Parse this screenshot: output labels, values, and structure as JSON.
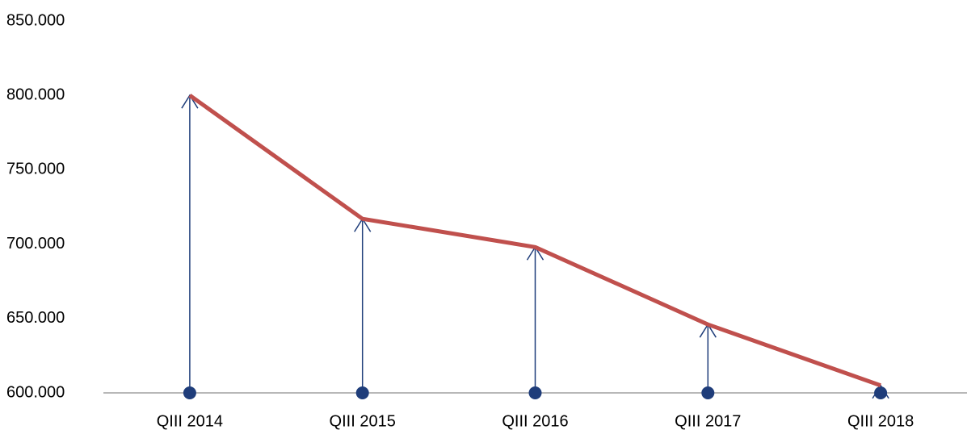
{
  "chart_data": {
    "type": "line",
    "categories": [
      "QIII 2014",
      "QIII 2015",
      "QIII 2016",
      "QIII 2017",
      "QIII 2018"
    ],
    "series": [
      {
        "color": "#c0504d",
        "values": [
          800000,
          717000,
          698000,
          646000,
          605000
        ]
      }
    ],
    "drop_line_color": "#1f3d7a",
    "ylim": [
      600000,
      850000
    ],
    "yticks": [
      {
        "value": 600000,
        "label": "600.000"
      },
      {
        "value": 650000,
        "label": "650.000"
      },
      {
        "value": 700000,
        "label": "700.000"
      },
      {
        "value": 750000,
        "label": "750.000"
      },
      {
        "value": 800000,
        "label": "800.000"
      },
      {
        "value": 850000,
        "label": "850.000"
      }
    ],
    "grid": false
  }
}
